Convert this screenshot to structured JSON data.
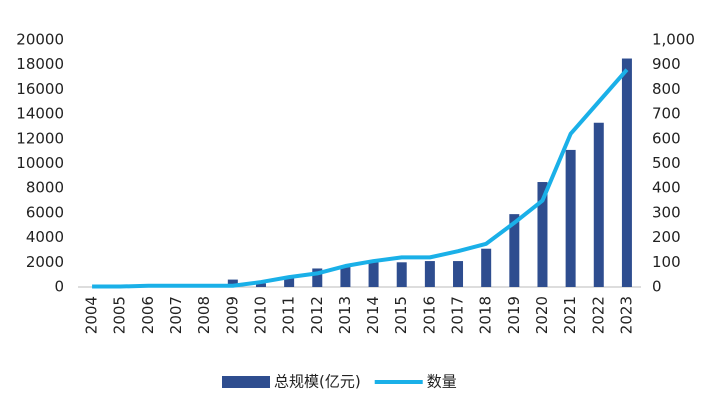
{
  "chart_data": {
    "type": "bar-line",
    "categories": [
      "2004",
      "2005",
      "2006",
      "2007",
      "2008",
      "2009",
      "2010",
      "2011",
      "2012",
      "2013",
      "2014",
      "2015",
      "2016",
      "2017",
      "2018",
      "2019",
      "2020",
      "2021",
      "2022",
      "2023"
    ],
    "series": [
      {
        "name": "总规模(亿元)",
        "type": "bar",
        "color": "#2e4d8f",
        "values": [
          0,
          0,
          50,
          50,
          50,
          600,
          300,
          800,
          1500,
          1700,
          2000,
          2000,
          2100,
          2100,
          3100,
          5900,
          8500,
          11100,
          13300,
          18500
        ]
      },
      {
        "name": "数量",
        "type": "line",
        "axis": "y2",
        "color": "#1ab0e8",
        "values": [
          2,
          2,
          5,
          5,
          5,
          5,
          20,
          40,
          55,
          85,
          105,
          120,
          120,
          145,
          175,
          260,
          350,
          620,
          750,
          880
        ]
      }
    ],
    "ylim": [
      0,
      20000
    ],
    "yticks": [
      0,
      2000,
      4000,
      6000,
      8000,
      10000,
      12000,
      14000,
      16000,
      18000,
      20000
    ],
    "y2lim": [
      0,
      1000
    ],
    "y2ticks": [
      0,
      100,
      200,
      300,
      400,
      500,
      600,
      700,
      800,
      900,
      {
        "value": 1000,
        "label": "1,000"
      }
    ],
    "legend": "bottom"
  }
}
